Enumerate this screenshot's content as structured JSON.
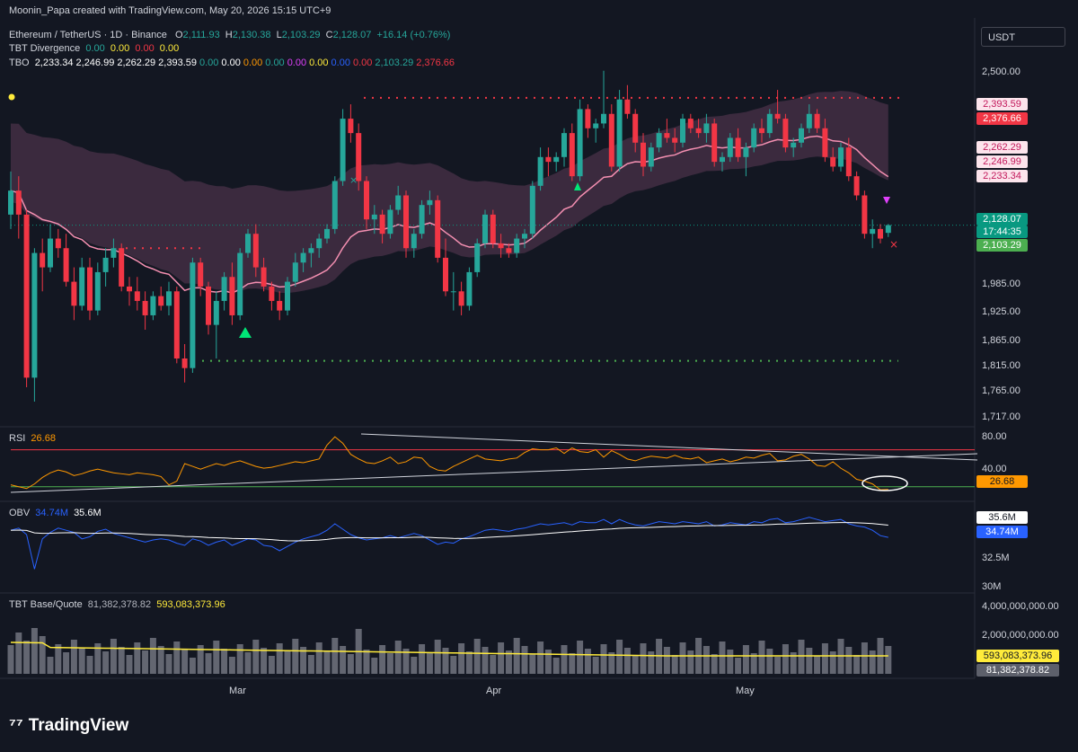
{
  "credit": "Moonin_Papa created with TradingView.com, May 20, 2026 15:15 UTC+9",
  "symbol": "Ethereum / TetherUS · 1D · Binance",
  "ohlc": {
    "o_label": "O",
    "o": "2,111.93",
    "h_label": "H",
    "h": "2,130.38",
    "l_label": "L",
    "l": "2,103.29",
    "c_label": "C",
    "c": "2,128.07",
    "change": "+16.14 (+0.76%)"
  },
  "tbt_divergence": {
    "name": "TBT Divergence",
    "values": [
      "0.00",
      "0.00",
      "0.00",
      "0.00"
    ]
  },
  "tbo": {
    "name": "TBO",
    "values": [
      "2,233.34",
      "2,246.99",
      "2,262.29",
      "2,393.59",
      "0.00",
      "0.00",
      "0.00",
      "0.00",
      "0.00",
      "0.00",
      "0.00",
      "0.00",
      "2,103.29",
      "2,376.66"
    ],
    "colors": [
      "#ffffff",
      "#ffffff",
      "#ffffff",
      "#ffffff",
      "#26a69a",
      "#ffffff",
      "#ff9800",
      "#26a69a",
      "#e040fb",
      "#ffeb3b",
      "#2962ff",
      "#f23645",
      "#26a69a",
      "#f23645"
    ]
  },
  "currency_button": "USDT",
  "price_axis": [
    "2,500.00",
    "1,985.00",
    "1,925.00",
    "1,865.00",
    "1,815.00",
    "1,765.00",
    "1,717.00"
  ],
  "price_tags": [
    {
      "text": "2,393.59",
      "bg": "#fce4ec",
      "fg": "#c2185b"
    },
    {
      "text": "2,376.66",
      "bg": "#f23645",
      "fg": "#ffffff"
    },
    {
      "text": "2,262.29",
      "bg": "#fce4ec",
      "fg": "#c2185b"
    },
    {
      "text": "2,246.99",
      "bg": "#fce4ec",
      "fg": "#c2185b"
    },
    {
      "text": "2,233.34",
      "bg": "#fce4ec",
      "fg": "#c2185b"
    },
    {
      "text": "2,128.07",
      "bg": "#089981",
      "fg": "#ffffff"
    },
    {
      "text": "17:44:35",
      "bg": "#089981",
      "fg": "#ffffff"
    },
    {
      "text": "2,103.29",
      "bg": "#4caf50",
      "fg": "#ffffff"
    }
  ],
  "rsi": {
    "name": "RSI",
    "value": "26.68",
    "axis": [
      "80.00",
      "40.00"
    ],
    "upper": 70,
    "lower": 30
  },
  "obv": {
    "name": "OBV",
    "value": "34.74M",
    "ma": "35.6M",
    "axis": [
      "32.5M",
      "30M"
    ]
  },
  "base_quote": {
    "name": "TBT Base/Quote",
    "value1": "81,382,378.82",
    "value2": "593,083,373.96",
    "axis": [
      "4,000,000,000.00",
      "2,000,000,000.00"
    ]
  },
  "months": [
    "Mar",
    "Apr",
    "May"
  ],
  "brand": "TradingView",
  "colors": {
    "bg": "#131722",
    "up": "#26a69a",
    "down": "#f23645",
    "ma": "#f48fb1",
    "cloud": "#5d3a55"
  },
  "chart_data": [
    {
      "type": "candlestick",
      "title": "Ethereum / TetherUS · 1D · Binance",
      "ylim": [
        1717,
        2560
      ],
      "candles": [
        [
          2150,
          2240,
          2120,
          2200
        ],
        [
          2200,
          2230,
          2100,
          2150
        ],
        [
          2150,
          2160,
          1790,
          1810
        ],
        [
          1810,
          2080,
          1760,
          2070
        ],
        [
          2070,
          2100,
          1990,
          2040
        ],
        [
          2040,
          2130,
          2030,
          2100
        ],
        [
          2100,
          2120,
          2060,
          2080
        ],
        [
          2080,
          2110,
          2000,
          2010
        ],
        [
          2010,
          2040,
          1930,
          1960
        ],
        [
          1960,
          2060,
          1950,
          2040
        ],
        [
          2040,
          2060,
          1930,
          1950
        ],
        [
          1950,
          2050,
          1940,
          2030
        ],
        [
          2030,
          2080,
          2000,
          2060
        ],
        [
          2060,
          2100,
          2040,
          2080
        ],
        [
          2080,
          2090,
          1990,
          2000
        ],
        [
          2000,
          2020,
          1960,
          1990
        ],
        [
          1990,
          2020,
          1950,
          1970
        ],
        [
          1970,
          1990,
          1910,
          1940
        ],
        [
          1940,
          1990,
          1930,
          1980
        ],
        [
          1980,
          2000,
          1950,
          1960
        ],
        [
          1960,
          2010,
          1940,
          1990
        ],
        [
          1990,
          2000,
          1840,
          1850
        ],
        [
          1850,
          1880,
          1800,
          1830
        ],
        [
          1830,
          2060,
          1820,
          2050
        ],
        [
          2050,
          2060,
          1980,
          2000
        ],
        [
          2000,
          2010,
          1900,
          1920
        ],
        [
          1920,
          1990,
          1850,
          1970
        ],
        [
          1970,
          2030,
          1950,
          2020
        ],
        [
          2020,
          2050,
          1920,
          1940
        ],
        [
          1940,
          2080,
          1930,
          2070
        ],
        [
          2070,
          2120,
          2060,
          2110
        ],
        [
          2110,
          2130,
          2020,
          2040
        ],
        [
          2040,
          2060,
          1990,
          2000
        ],
        [
          2000,
          2010,
          1950,
          1970
        ],
        [
          1970,
          1990,
          1930,
          1950
        ],
        [
          1950,
          2020,
          1940,
          2010
        ],
        [
          2010,
          2070,
          2000,
          2050
        ],
        [
          2050,
          2080,
          2030,
          2070
        ],
        [
          2070,
          2090,
          2040,
          2080
        ],
        [
          2080,
          2110,
          2060,
          2100
        ],
        [
          2100,
          2130,
          2090,
          2120
        ],
        [
          2120,
          2230,
          2110,
          2220
        ],
        [
          2220,
          2370,
          2210,
          2350
        ],
        [
          2350,
          2380,
          2300,
          2320
        ],
        [
          2320,
          2340,
          2200,
          2220
        ],
        [
          2220,
          2230,
          2120,
          2140
        ],
        [
          2140,
          2170,
          2110,
          2150
        ],
        [
          2150,
          2160,
          2090,
          2110
        ],
        [
          2110,
          2170,
          2100,
          2160
        ],
        [
          2160,
          2210,
          2150,
          2190
        ],
        [
          2190,
          2200,
          2060,
          2080
        ],
        [
          2080,
          2120,
          2060,
          2110
        ],
        [
          2110,
          2180,
          2100,
          2170
        ],
        [
          2170,
          2200,
          2150,
          2180
        ],
        [
          2180,
          2190,
          2050,
          2060
        ],
        [
          2060,
          2100,
          1980,
          1990
        ],
        [
          1990,
          2030,
          1950,
          1990
        ],
        [
          1990,
          2010,
          1940,
          1960
        ],
        [
          1960,
          2040,
          1950,
          2030
        ],
        [
          2030,
          2100,
          2020,
          2090
        ],
        [
          2090,
          2160,
          2080,
          2150
        ],
        [
          2150,
          2160,
          2080,
          2090
        ],
        [
          2090,
          2110,
          2060,
          2080
        ],
        [
          2080,
          2090,
          2060,
          2070
        ],
        [
          2070,
          2110,
          2060,
          2100
        ],
        [
          2100,
          2120,
          2080,
          2110
        ],
        [
          2110,
          2220,
          2100,
          2210
        ],
        [
          2210,
          2290,
          2200,
          2270
        ],
        [
          2270,
          2290,
          2230,
          2260
        ],
        [
          2260,
          2280,
          2240,
          2270
        ],
        [
          2270,
          2330,
          2250,
          2320
        ],
        [
          2320,
          2340,
          2220,
          2230
        ],
        [
          2230,
          2390,
          2220,
          2370
        ],
        [
          2370,
          2380,
          2310,
          2330
        ],
        [
          2330,
          2350,
          2300,
          2340
        ],
        [
          2340,
          2450,
          2330,
          2360
        ],
        [
          2360,
          2380,
          2240,
          2250
        ],
        [
          2250,
          2410,
          2240,
          2390
        ],
        [
          2390,
          2420,
          2350,
          2360
        ],
        [
          2360,
          2370,
          2280,
          2300
        ],
        [
          2300,
          2320,
          2230,
          2250
        ],
        [
          2250,
          2300,
          2240,
          2290
        ],
        [
          2290,
          2330,
          2280,
          2320
        ],
        [
          2320,
          2350,
          2300,
          2310
        ],
        [
          2310,
          2330,
          2280,
          2300
        ],
        [
          2300,
          2360,
          2290,
          2350
        ],
        [
          2350,
          2360,
          2320,
          2330
        ],
        [
          2330,
          2350,
          2310,
          2320
        ],
        [
          2320,
          2360,
          2300,
          2340
        ],
        [
          2340,
          2350,
          2250,
          2260
        ],
        [
          2260,
          2280,
          2240,
          2270
        ],
        [
          2270,
          2320,
          2260,
          2310
        ],
        [
          2310,
          2330,
          2260,
          2270
        ],
        [
          2270,
          2300,
          2230,
          2290
        ],
        [
          2290,
          2340,
          2280,
          2330
        ],
        [
          2330,
          2350,
          2300,
          2320
        ],
        [
          2320,
          2370,
          2310,
          2360
        ],
        [
          2360,
          2410,
          2340,
          2350
        ],
        [
          2350,
          2360,
          2280,
          2290
        ],
        [
          2290,
          2310,
          2270,
          2300
        ],
        [
          2300,
          2340,
          2290,
          2330
        ],
        [
          2330,
          2380,
          2320,
          2360
        ],
        [
          2360,
          2370,
          2320,
          2330
        ],
        [
          2330,
          2350,
          2260,
          2270
        ],
        [
          2270,
          2290,
          2240,
          2250
        ],
        [
          2250,
          2300,
          2240,
          2290
        ],
        [
          2290,
          2310,
          2220,
          2230
        ],
        [
          2230,
          2240,
          2180,
          2190
        ],
        [
          2190,
          2200,
          2100,
          2110
        ],
        [
          2110,
          2140,
          2080,
          2120
        ],
        [
          2120,
          2130,
          2090,
          2100
        ],
        [
          2111.93,
          2130.38,
          2103.29,
          2128.07
        ]
      ]
    },
    {
      "type": "line",
      "title": "RSI",
      "ylim": [
        20,
        90
      ],
      "series": [
        {
          "name": "RSI",
          "values": [
            32,
            30,
            28,
            33,
            40,
            45,
            48,
            46,
            42,
            44,
            47,
            49,
            47,
            45,
            44,
            43,
            45,
            44,
            43,
            41,
            32,
            36,
            55,
            52,
            49,
            52,
            55,
            53,
            56,
            58,
            55,
            52,
            50,
            51,
            53,
            55,
            57,
            56,
            58,
            60,
            75,
            84,
            77,
            65,
            60,
            56,
            55,
            58,
            62,
            55,
            57,
            62,
            61,
            52,
            48,
            47,
            52,
            56,
            60,
            64,
            60,
            59,
            58,
            60,
            61,
            67,
            71,
            70,
            70,
            72,
            66,
            72,
            68,
            67,
            70,
            62,
            69,
            65,
            60,
            58,
            61,
            63,
            62,
            61,
            64,
            61,
            60,
            62,
            56,
            58,
            60,
            57,
            59,
            62,
            61,
            64,
            66,
            58,
            59,
            63,
            65,
            60,
            53,
            52,
            57,
            50,
            45,
            38,
            36,
            33,
            26.68,
            27
          ]
        }
      ]
    },
    {
      "type": "line",
      "title": "OBV",
      "ylim": [
        30,
        37.5
      ],
      "series": [
        {
          "name": "OBV",
          "values": [
            35.4,
            35.6,
            35.0,
            31.8,
            34.6,
            35.2,
            35.6,
            35.4,
            35.2,
            34.6,
            34.8,
            35.3,
            35.5,
            35.1,
            34.9,
            34.7,
            34.5,
            34.3,
            34.5,
            34.6,
            34.5,
            34.2,
            34.0,
            34.6,
            34.4,
            34.0,
            34.3,
            34.5,
            34.0,
            34.3,
            34.6,
            34.5,
            34.0,
            33.9,
            33.5,
            33.9,
            34.3,
            34.6,
            34.8,
            35.0,
            35.4,
            36.0,
            35.5,
            35.0,
            34.7,
            34.5,
            34.6,
            34.7,
            34.9,
            34.7,
            34.9,
            35.1,
            34.9,
            34.5,
            34.1,
            34.3,
            34.2,
            34.6,
            34.8,
            35.1,
            35.4,
            35.5,
            35.4,
            35.3,
            35.5,
            35.6,
            35.8,
            36.0,
            35.9,
            36.0,
            36.1,
            35.9,
            36.2,
            36.1,
            36.1,
            36.4,
            36.0,
            36.4,
            36.1,
            35.9,
            35.8,
            36.0,
            36.2,
            36.1,
            36.0,
            36.2,
            36.1,
            36.0,
            36.2,
            35.8,
            35.9,
            36.1,
            36.0,
            35.9,
            36.2,
            36.1,
            36.4,
            36.5,
            36.1,
            36.2,
            36.4,
            36.6,
            36.4,
            36.2,
            36.3,
            36.4,
            36.0,
            35.8,
            35.7,
            35.4,
            34.9,
            34.74
          ]
        }
      ]
    }
  ]
}
